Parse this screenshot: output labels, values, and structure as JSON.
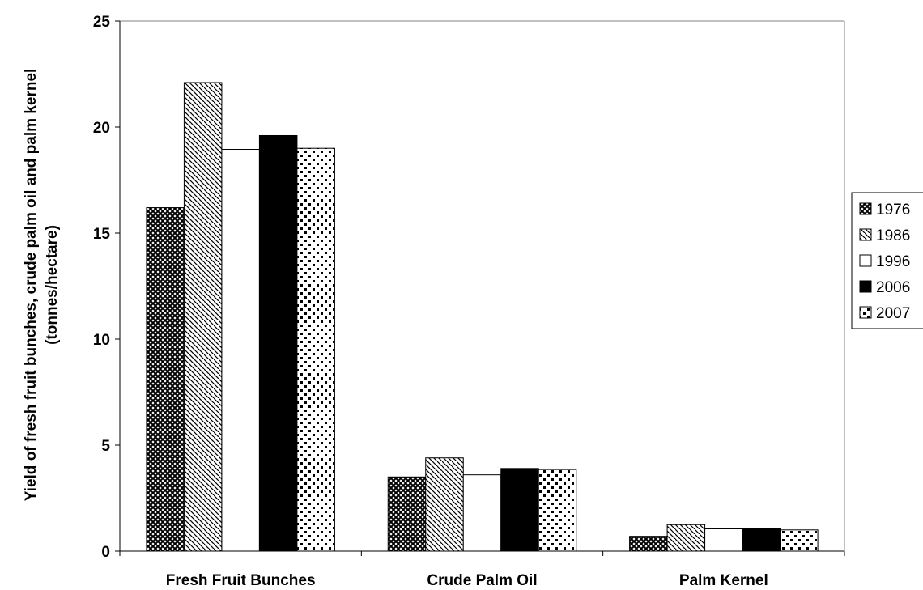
{
  "chart_data": {
    "type": "bar",
    "categories": [
      "Fresh Fruit Bunches",
      "Crude Palm Oil",
      "Palm Kernel"
    ],
    "series": [
      {
        "name": "1976",
        "values": [
          16.2,
          3.5,
          0.7
        ],
        "pattern": "crosshatch"
      },
      {
        "name": "1986",
        "values": [
          22.1,
          4.4,
          1.25
        ],
        "pattern": "diagonal"
      },
      {
        "name": "1996",
        "values": [
          18.95,
          3.6,
          1.05
        ],
        "pattern": "white"
      },
      {
        "name": "2006",
        "values": [
          19.6,
          3.9,
          1.05
        ],
        "pattern": "black"
      },
      {
        "name": "2007",
        "values": [
          19.0,
          3.85,
          1.0
        ],
        "pattern": "dots"
      }
    ],
    "ylabel_line1": "Yield of fresh fruit bunches, crude palm oil and palm kernel",
    "ylabel_line2": "(tonnes/hectare)",
    "ylim": [
      0,
      25
    ],
    "yticks": [
      "0",
      "5",
      "10",
      "15",
      "20",
      "25"
    ],
    "gridlines": false,
    "legend_position": "right"
  }
}
